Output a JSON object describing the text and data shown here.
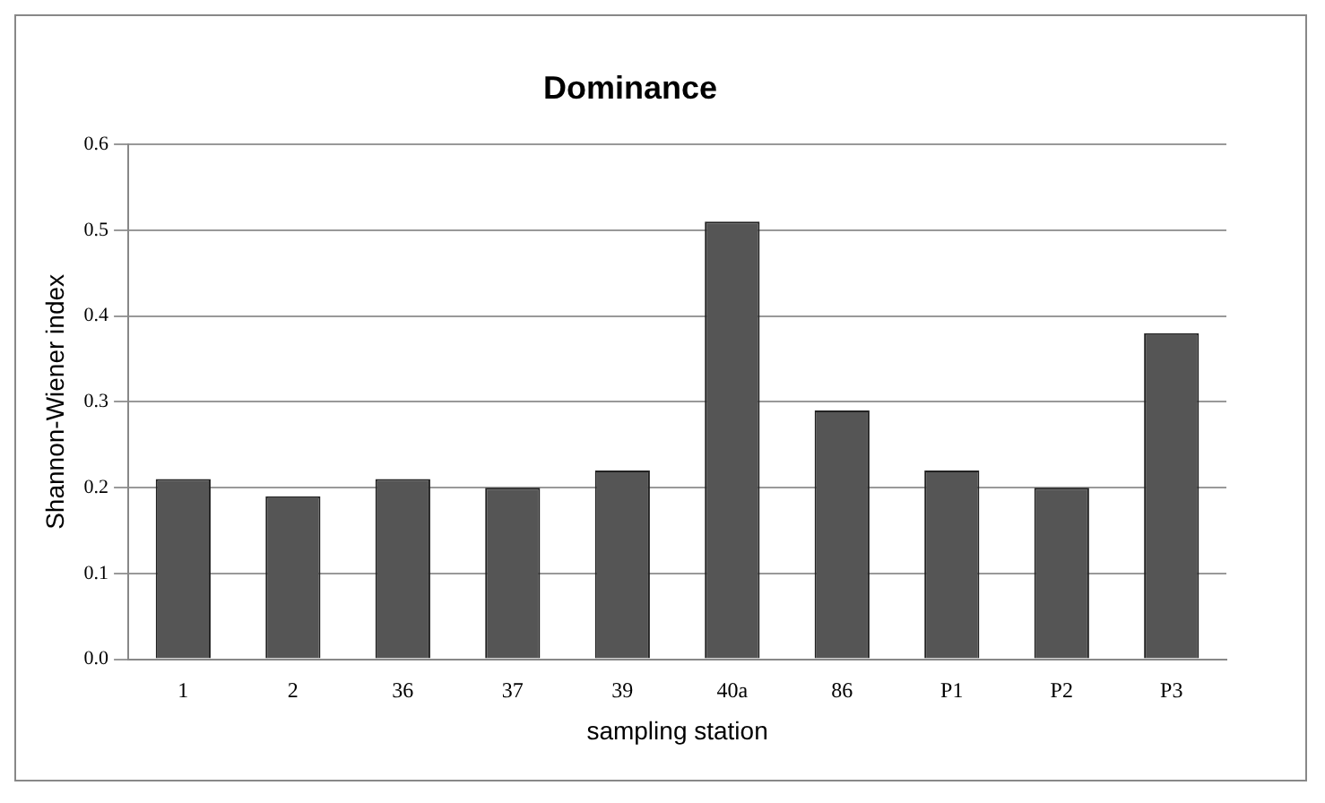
{
  "chart_data": {
    "type": "bar",
    "title": "Dominance",
    "xlabel": "sampling station",
    "ylabel": "Shannon-Wiener index",
    "categories": [
      "1",
      "2",
      "36",
      "37",
      "39",
      "40a",
      "86",
      "P1",
      "P2",
      "P3"
    ],
    "values": [
      0.21,
      0.19,
      0.21,
      0.2,
      0.22,
      0.51,
      0.29,
      0.22,
      0.2,
      0.38
    ],
    "color": "#555555",
    "ylim": [
      0,
      0.6
    ],
    "yticks": [
      {
        "value": 0,
        "label": "0.0"
      },
      {
        "value": 0.1,
        "label": "0.1"
      },
      {
        "value": 0.2,
        "label": "0.2"
      },
      {
        "value": 0.3,
        "label": "0.3"
      },
      {
        "value": 0.4,
        "label": "0.4"
      },
      {
        "value": 0.5,
        "label": "0.5"
      },
      {
        "value": 0.6,
        "label": "0.6"
      }
    ],
    "grid": "y"
  }
}
